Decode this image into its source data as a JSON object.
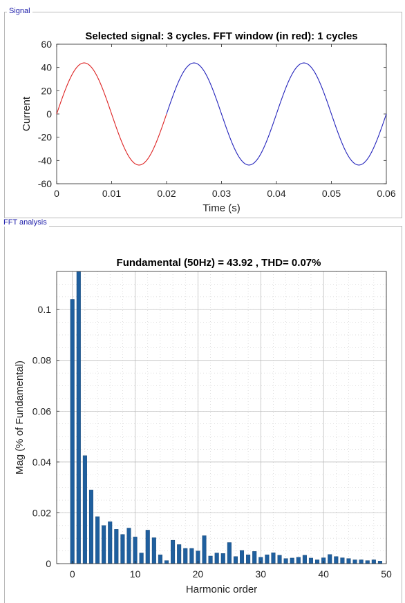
{
  "signal_panel": {
    "legend": "Signal"
  },
  "fft_panel": {
    "legend": "FFT analysis"
  },
  "chart_data": [
    {
      "type": "line",
      "title": "Selected signal: 3 cycles. FFT window (in red): 1 cycles",
      "xlabel": "Time (s)",
      "ylabel": "Current",
      "xlim": [
        0,
        0.06
      ],
      "ylim": [
        -60,
        60
      ],
      "x_ticks": [
        "0",
        "0.01",
        "0.02",
        "0.03",
        "0.04",
        "0.05",
        "0.06"
      ],
      "y_ticks": [
        "60",
        "40",
        "20",
        "0",
        "-20",
        "-40",
        "-60"
      ],
      "grid": false,
      "signal": {
        "amplitude": 43.92,
        "frequency_hz": 50
      },
      "series": [
        {
          "x_range": [
            0,
            0.02
          ],
          "color": "#dd2222"
        },
        {
          "x_range": [
            0.02,
            0.06
          ],
          "color": "#2222bb"
        }
      ]
    },
    {
      "type": "bar",
      "title": "Fundamental (50Hz) = 43.92 , THD= 0.07%",
      "xlabel": "Harmonic order",
      "ylabel": "Mag (% of Fundamental)",
      "xlim": [
        -2.5,
        50
      ],
      "ylim": [
        0,
        0.115
      ],
      "x_ticks": [
        "0",
        "10",
        "20",
        "30",
        "40",
        "50"
      ],
      "y_ticks": [
        "0.1",
        "0.08",
        "0.06",
        "0.04",
        "0.02",
        "0"
      ],
      "grid": true,
      "bar_color": "#1f5f9e",
      "categories": [
        0,
        1,
        2,
        3,
        4,
        5,
        6,
        7,
        8,
        9,
        10,
        11,
        12,
        13,
        14,
        15,
        16,
        17,
        18,
        19,
        20,
        21,
        22,
        23,
        24,
        25,
        26,
        27,
        28,
        29,
        30,
        31,
        32,
        33,
        34,
        35,
        36,
        37,
        38,
        39,
        40,
        41,
        42,
        43,
        44,
        45,
        46,
        47,
        48,
        49
      ],
      "values": [
        0.104,
        0.115,
        0.0425,
        0.029,
        0.0185,
        0.015,
        0.0165,
        0.0135,
        0.0115,
        0.014,
        0.0105,
        0.0042,
        0.0132,
        0.0102,
        0.0035,
        0.0012,
        0.0092,
        0.0075,
        0.006,
        0.006,
        0.005,
        0.011,
        0.003,
        0.0042,
        0.004,
        0.0083,
        0.0028,
        0.0052,
        0.0035,
        0.0048,
        0.0025,
        0.0035,
        0.0043,
        0.0033,
        0.002,
        0.0022,
        0.0025,
        0.0033,
        0.0022,
        0.0015,
        0.0023,
        0.0036,
        0.0028,
        0.0023,
        0.002,
        0.0015,
        0.0015,
        0.0012,
        0.0015,
        0.001
      ]
    }
  ]
}
